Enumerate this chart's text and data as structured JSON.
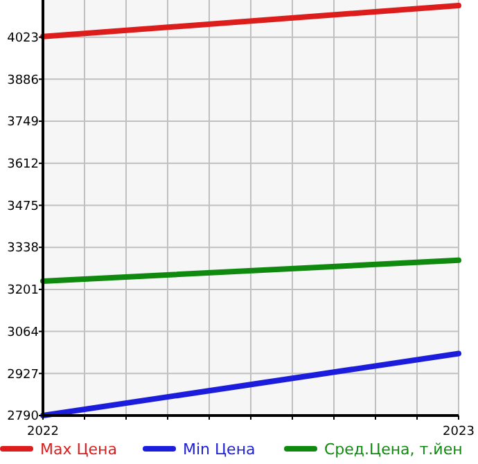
{
  "chart_data": {
    "type": "line",
    "x": [
      2022,
      2023
    ],
    "series": [
      {
        "name": "Max Цена",
        "color": "#dd1c1c",
        "values": [
          4025,
          4126
        ]
      },
      {
        "name": "Min Цена",
        "color": "#1c1cdd",
        "values": [
          2790,
          2992
        ]
      },
      {
        "name": "Сред.Цена, т.йен",
        "color": "#0f8a0f",
        "values": [
          3228,
          3296
        ]
      }
    ],
    "xlim": [
      2022,
      2023
    ],
    "xticks": [
      2022,
      {
        "value": 2022.1,
        "label": null
      },
      {
        "value": 2022.2,
        "label": null
      },
      {
        "value": 2022.3,
        "label": null
      },
      {
        "value": 2022.4,
        "label": null
      },
      {
        "value": 2022.5,
        "label": null
      },
      {
        "value": 2022.6,
        "label": null
      },
      {
        "value": 2022.7,
        "label": null
      },
      {
        "value": 2022.8,
        "label": null
      },
      {
        "value": 2022.9,
        "label": null
      },
      2023
    ],
    "ylim": [
      2790,
      4135
    ],
    "yticks": [
      2790,
      2927,
      3064,
      3201,
      3338,
      3475,
      3612,
      3749,
      3886,
      4023
    ],
    "grid": true,
    "legend": "bottom",
    "marker": "none",
    "line_style": "solid"
  }
}
